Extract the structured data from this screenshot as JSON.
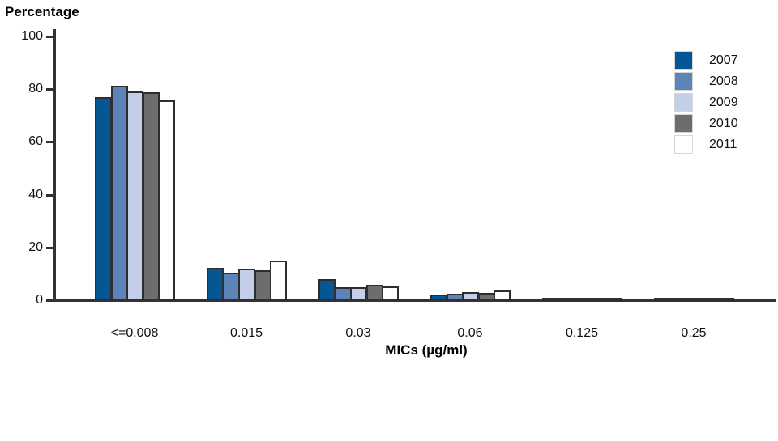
{
  "chart_data": {
    "type": "bar",
    "title": "Percentage",
    "xlabel": "MICs (µg/ml)",
    "ylabel": "Percentage",
    "ylim": [
      0,
      100
    ],
    "yticks": [
      0,
      20,
      40,
      60,
      80,
      100
    ],
    "grid": false,
    "legend_position": "top-right",
    "categories": [
      "<=0.008",
      "0.015",
      "0.03",
      "0.06",
      "0.125",
      "0.25"
    ],
    "series": [
      {
        "name": "2007",
        "color": "#075694",
        "values": [
          77.0,
          12.3,
          8.0,
          2.1,
          0.3,
          0.2
        ]
      },
      {
        "name": "2008",
        "color": "#5c84b8",
        "values": [
          81.3,
          10.5,
          5.0,
          2.6,
          0.3,
          0.2
        ]
      },
      {
        "name": "2009",
        "color": "#c3cfe8",
        "values": [
          79.0,
          12.0,
          5.0,
          3.0,
          0.5,
          0.3
        ]
      },
      {
        "name": "2010",
        "color": "#6c6d6f",
        "values": [
          78.8,
          11.2,
          5.8,
          2.7,
          0.6,
          0.4
        ]
      },
      {
        "name": "2011",
        "color": "#ffffff",
        "values": [
          75.8,
          15.0,
          5.3,
          3.6,
          0.5,
          0.4
        ]
      }
    ]
  },
  "styles": {
    "bar_border": "#2e2e30",
    "axis_color": "#333335",
    "text_color": "#111111",
    "legend_swatch_border": "#d6d6d6",
    "background": "#ffffff"
  }
}
